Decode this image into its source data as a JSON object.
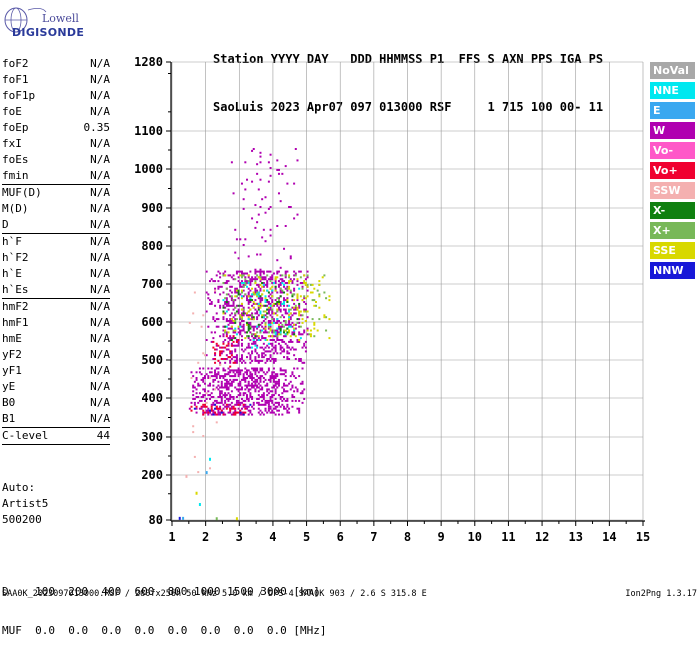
{
  "logo": {
    "line1": "Lowell",
    "line2": "DIGISONDE"
  },
  "header": {
    "row1": "Station YYYY DAY   DDD HHMMSS P1  FFS S AXN PPS IGA PS",
    "row2": "SaoLuis 2023 Apr07 097 013000 RSF     1 715 100 00- 11"
  },
  "params": {
    "group1": [
      {
        "name": "foF2",
        "value": "N/A"
      },
      {
        "name": "foF1",
        "value": "N/A"
      },
      {
        "name": "foF1p",
        "value": "N/A"
      },
      {
        "name": "foE",
        "value": "N/A"
      },
      {
        "name": "foEp",
        "value": "0.35"
      },
      {
        "name": "fxI",
        "value": "N/A"
      },
      {
        "name": "foEs",
        "value": "N/A"
      },
      {
        "name": "fmin",
        "value": "N/A"
      }
    ],
    "group2": [
      {
        "name": "MUF(D)",
        "value": "N/A"
      },
      {
        "name": "M(D)",
        "value": "N/A"
      },
      {
        "name": "D",
        "value": "N/A"
      }
    ],
    "group3": [
      {
        "name": "h`F",
        "value": "N/A"
      },
      {
        "name": "h`F2",
        "value": "N/A"
      },
      {
        "name": "h`E",
        "value": "N/A"
      },
      {
        "name": "h`Es",
        "value": "N/A"
      }
    ],
    "group4": [
      {
        "name": "hmF2",
        "value": "N/A"
      },
      {
        "name": "hmF1",
        "value": "N/A"
      },
      {
        "name": "hmE",
        "value": "N/A"
      },
      {
        "name": "yF2",
        "value": "N/A"
      },
      {
        "name": "yF1",
        "value": "N/A"
      },
      {
        "name": "yE",
        "value": "N/A"
      },
      {
        "name": "B0",
        "value": "N/A"
      },
      {
        "name": "B1",
        "value": "N/A"
      }
    ],
    "group5": [
      {
        "name": "C-level",
        "value": "44"
      }
    ]
  },
  "auto": {
    "line1": "Auto:",
    "line2": "Artist5",
    "line3": "500200"
  },
  "legend": [
    {
      "label": "NoVal",
      "color": "#a8a8a8",
      "text": "#ffffff"
    },
    {
      "label": "NNE",
      "color": "#00e8f0",
      "text": "#ffffff"
    },
    {
      "label": "E",
      "color": "#3aa8f0",
      "text": "#ffffff"
    },
    {
      "label": "W",
      "color": "#b000b0",
      "text": "#ffffff"
    },
    {
      "label": "Vo-",
      "color": "#ff58c8",
      "text": "#ffffff"
    },
    {
      "label": "Vo+",
      "color": "#f00030",
      "text": "#ffffff"
    },
    {
      "label": "SSW",
      "color": "#f4b0b0",
      "text": "#ffffff"
    },
    {
      "label": "X-",
      "color": "#108010",
      "text": "#ffffff"
    },
    {
      "label": "X+",
      "color": "#78b858",
      "text": "#ffffff"
    },
    {
      "label": "SSE",
      "color": "#d8d800",
      "text": "#ffffff"
    },
    {
      "label": "NNW",
      "color": "#1818d8",
      "text": "#ffffff"
    }
  ],
  "bottom": {
    "d_row": "D    100  200  400  600  800 1000 1500 3000 [km]",
    "muf_row": "MUF  0.0  0.0  0.0  0.0  0.0  0.0  0.0  0.0 [MHz]"
  },
  "footer": {
    "left": "SAA0K_2023097013000.RSF / 280fx256h 50 kHz 5.0 km / DPS-4 SAA0K 903 / 2.6 S 315.8 E",
    "right": "Ion2Png 1.3.17"
  },
  "chart_data": {
    "type": "scatter",
    "title": "",
    "xlabel": "",
    "ylabel": "",
    "xlim": [
      1,
      15
    ],
    "ylim": [
      80,
      1280
    ],
    "x_ticks": [
      1,
      2,
      3,
      4,
      5,
      6,
      7,
      8,
      9,
      10,
      11,
      12,
      13,
      14,
      15
    ],
    "y_ticks": [
      80,
      200,
      300,
      400,
      500,
      600,
      700,
      800,
      900,
      1000,
      1100,
      1280
    ],
    "grid": true,
    "clusters": [
      {
        "name": "W",
        "x": [
          1.5,
          4.9
        ],
        "y": [
          355,
          475
        ],
        "density": 0.45
      },
      {
        "name": "W",
        "x": [
          2.0,
          5.0
        ],
        "y": [
          490,
          730
        ],
        "density": 0.35
      },
      {
        "name": "W",
        "x": [
          2.7,
          4.8
        ],
        "y": [
          730,
          1050
        ],
        "density": 0.04
      },
      {
        "name": "Vo+",
        "x": [
          1.5,
          3.3
        ],
        "y": [
          355,
          380
        ],
        "density": 0.25
      },
      {
        "name": "Vo+",
        "x": [
          2.1,
          3.0
        ],
        "y": [
          480,
          560
        ],
        "density": 0.12
      },
      {
        "name": "X+",
        "x": [
          2.5,
          5.6
        ],
        "y": [
          560,
          720
        ],
        "density": 0.08
      },
      {
        "name": "SSE",
        "x": [
          2.5,
          5.7
        ],
        "y": [
          550,
          720
        ],
        "density": 0.08
      },
      {
        "name": "NNW",
        "x": [
          1.5,
          3.4
        ],
        "y": [
          355,
          380
        ],
        "density": 0.08
      },
      {
        "name": "NNE",
        "x": [
          2.5,
          5.0
        ],
        "y": [
          530,
          700
        ],
        "density": 0.04
      },
      {
        "name": "SSW",
        "x": [
          1.4,
          2.4
        ],
        "y": [
          200,
          700
        ],
        "density": 0.02
      },
      {
        "name": "X-",
        "x": [
          2.5,
          4.8
        ],
        "y": [
          550,
          700
        ],
        "density": 0.05
      }
    ],
    "low_points": [
      {
        "name": "NNW",
        "x": 1.2,
        "y": 83
      },
      {
        "name": "E",
        "x": 1.3,
        "y": 83
      },
      {
        "name": "NNE",
        "x": 2.1,
        "y": 240
      },
      {
        "name": "E",
        "x": 2.0,
        "y": 205
      },
      {
        "name": "SSE",
        "x": 1.7,
        "y": 150
      },
      {
        "name": "SSW",
        "x": 1.4,
        "y": 195
      },
      {
        "name": "X+",
        "x": 2.3,
        "y": 82
      },
      {
        "name": "SSE",
        "x": 2.9,
        "y": 82
      },
      {
        "name": "NNE",
        "x": 1.8,
        "y": 120
      }
    ]
  }
}
